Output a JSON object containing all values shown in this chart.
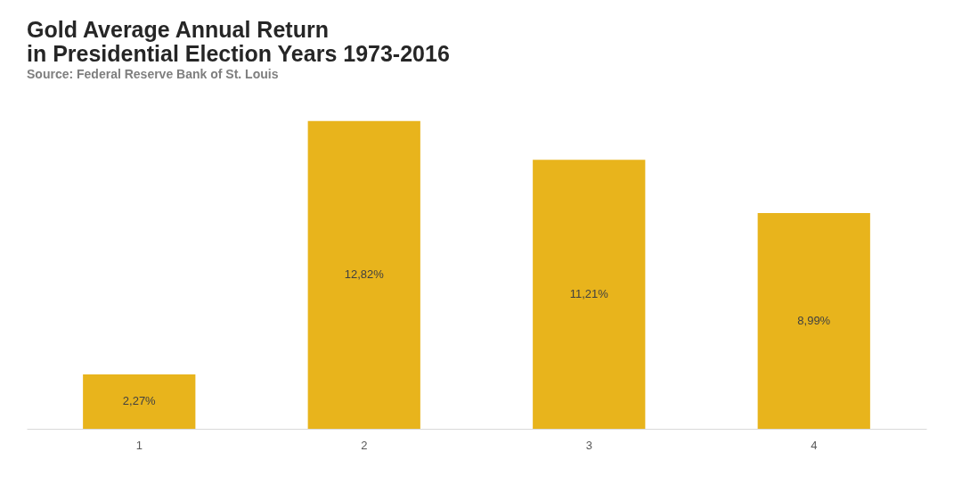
{
  "chart_data": {
    "type": "bar",
    "title": "Gold Average Annual Return\nin Presidential Election Years 1973-2016",
    "subtitle": "Source: Federal Reserve Bank of St. Louis",
    "categories": [
      "1",
      "2",
      "3",
      "4"
    ],
    "values": [
      2.27,
      12.82,
      11.21,
      8.99
    ],
    "color": "#e8b41c",
    "value_labels": [
      "2,27%",
      "12,82%",
      "11,21%",
      "8,99%"
    ]
  }
}
